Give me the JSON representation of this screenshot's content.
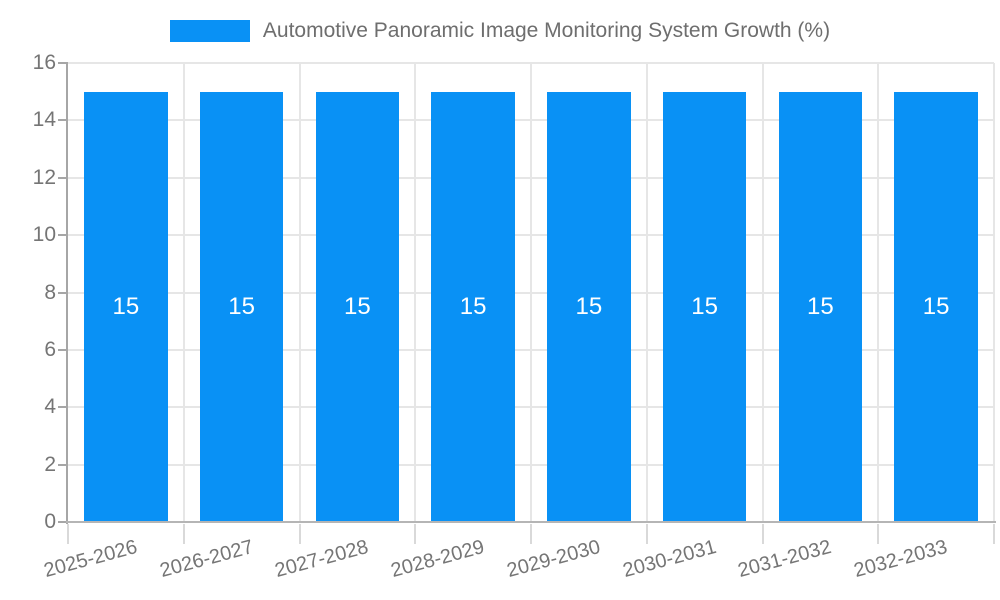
{
  "chart_data": {
    "type": "bar",
    "title": "Automotive Panoramic Image Monitoring System Growth (%)",
    "categories": [
      "2025-2026",
      "2026-2027",
      "2027-2028",
      "2028-2029",
      "2029-2030",
      "2030-2031",
      "2031-2032",
      "2032-2033"
    ],
    "values": [
      15,
      15,
      15,
      15,
      15,
      15,
      15,
      15
    ],
    "bar_labels": [
      "15",
      "15",
      "15",
      "15",
      "15",
      "15",
      "15",
      "15"
    ],
    "xlabel": "",
    "ylabel": "",
    "ylim": [
      0,
      16
    ],
    "yticks": [
      0,
      2,
      4,
      6,
      8,
      10,
      12,
      14,
      16
    ],
    "legend_position": "top",
    "grid": true,
    "colors": {
      "bar": "#0991f5",
      "bar_label": "#ffffff",
      "axis_text": "#757575",
      "title_text": "#6e6e6e",
      "gridline": "#e6e6e6",
      "axis_line": "#a6a6a6",
      "bottom_axis_line": "#b5b5b5"
    }
  }
}
